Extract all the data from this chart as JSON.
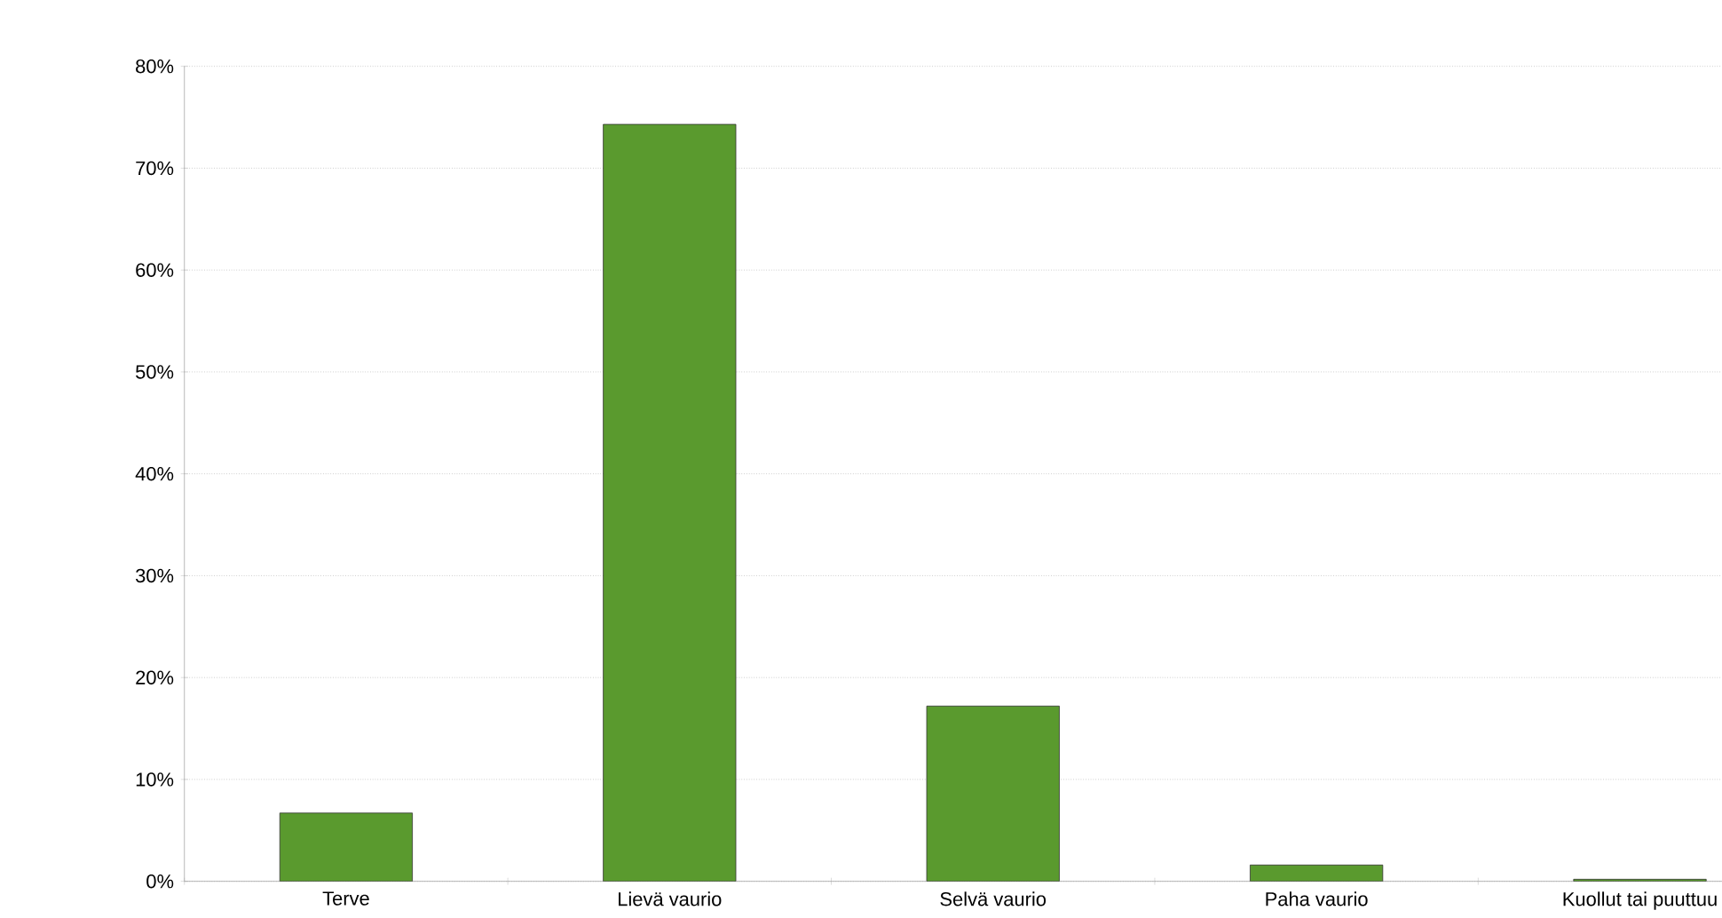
{
  "chart_data": {
    "type": "bar",
    "categories": [
      "Terve",
      "Lievä vaurio",
      "Selvä vaurio",
      "Paha vaurio",
      "Kuollut tai puuttuu"
    ],
    "values": [
      6.7,
      74.3,
      17.2,
      1.6,
      0.2
    ],
    "color": "#5a9a2e",
    "ylim": [
      0,
      80
    ],
    "yticks": [
      {
        "value": 0,
        "label": "0%"
      },
      {
        "value": 10,
        "label": "10%"
      },
      {
        "value": 20,
        "label": "20%"
      },
      {
        "value": 30,
        "label": "30%"
      },
      {
        "value": 40,
        "label": "40%"
      },
      {
        "value": 50,
        "label": "50%"
      },
      {
        "value": 60,
        "label": "60%"
      },
      {
        "value": 70,
        "label": "70%"
      },
      {
        "value": 80,
        "label": "80%"
      }
    ],
    "grid": "y"
  }
}
